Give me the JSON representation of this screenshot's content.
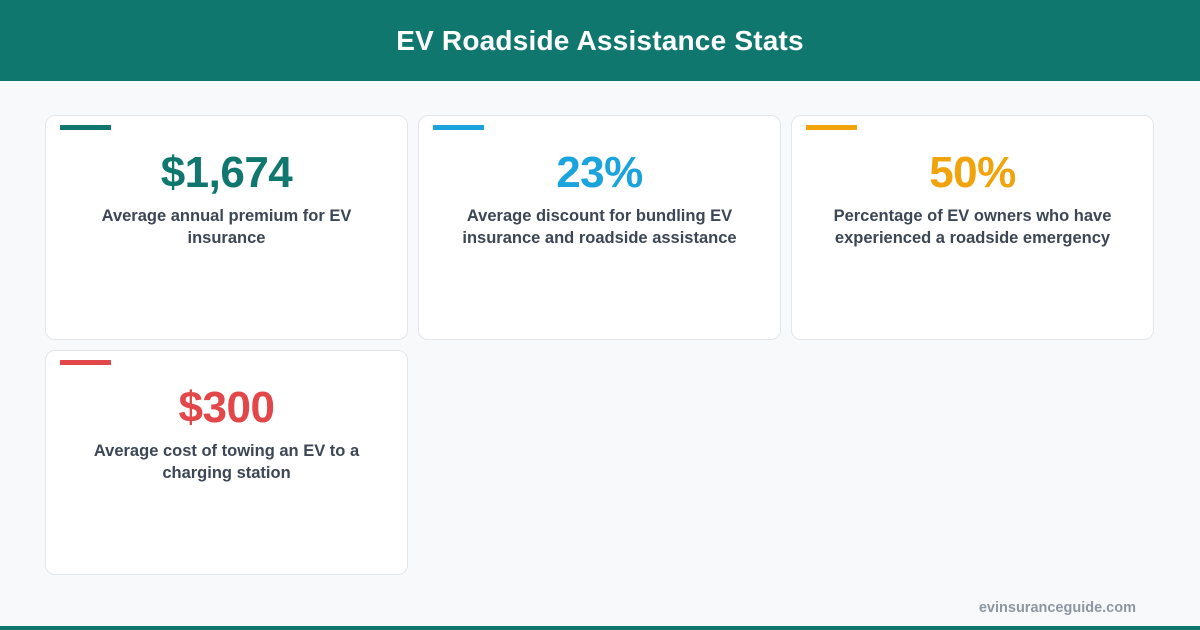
{
  "header": {
    "title": "EV Roadside Assistance Stats"
  },
  "colors": {
    "header_bg": "#10776e",
    "teal": "#10776e",
    "blue": "#1aa3dc",
    "amber": "#f0a30a",
    "red": "#e2474a"
  },
  "cards": [
    {
      "value": "$1,674",
      "description": "Average annual premium for EV insurance",
      "color": "#10776e"
    },
    {
      "value": "23%",
      "description": "Average discount for bundling EV insurance and roadside assistance",
      "color": "#1aa3dc"
    },
    {
      "value": "50%",
      "description": "Percentage of EV owners who have experienced a roadside emergency",
      "color": "#f0a30a"
    },
    {
      "value": "$300",
      "description": "Average cost of towing an EV to a charging station",
      "color": "#e2474a"
    }
  ],
  "footer": {
    "brand": "evinsuranceguide.com"
  }
}
